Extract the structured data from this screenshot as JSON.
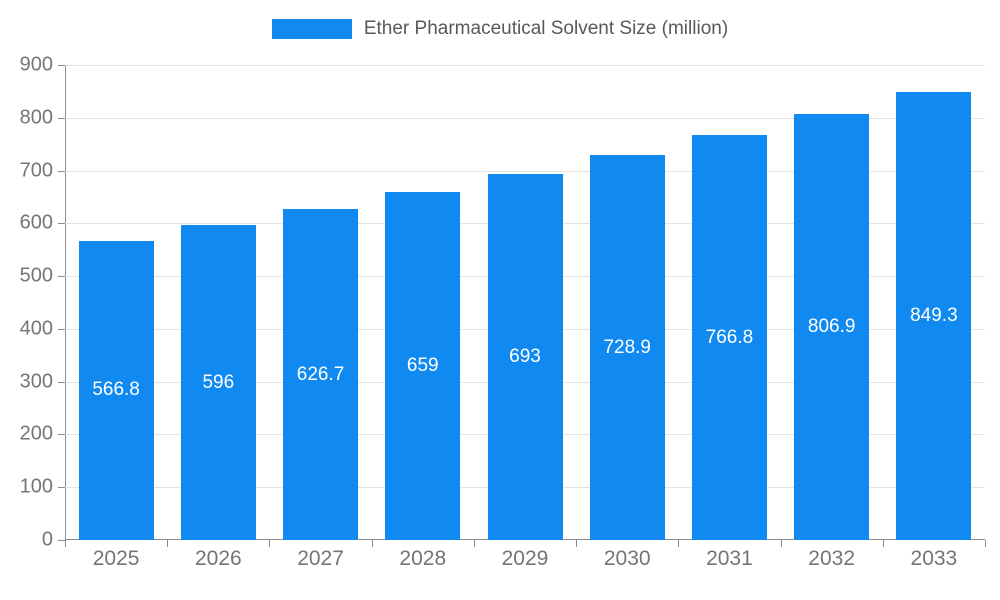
{
  "legend": {
    "label": "Ether Pharmaceutical Solvent Size (million)",
    "swatch_color": "#1089F0"
  },
  "chart_data": {
    "type": "bar",
    "title": "Ether Pharmaceutical Solvent Size (million)",
    "categories": [
      "2025",
      "2026",
      "2027",
      "2028",
      "2029",
      "2030",
      "2031",
      "2032",
      "2033"
    ],
    "values": [
      566.8,
      596,
      626.7,
      659,
      693,
      728.9,
      766.8,
      806.9,
      849.3
    ],
    "value_labels": [
      "566.8",
      "596",
      "626.7",
      "659",
      "693",
      "728.9",
      "766.8",
      "806.9",
      "849.3"
    ],
    "xlabel": "",
    "ylabel": "",
    "ylim": [
      0,
      900
    ],
    "ytick_step": 100,
    "grid": "horizontal",
    "legend_position": "top-center",
    "bar_color": "#1089F0",
    "label_color": "#ffffff",
    "axis_text_color": "#757575"
  }
}
